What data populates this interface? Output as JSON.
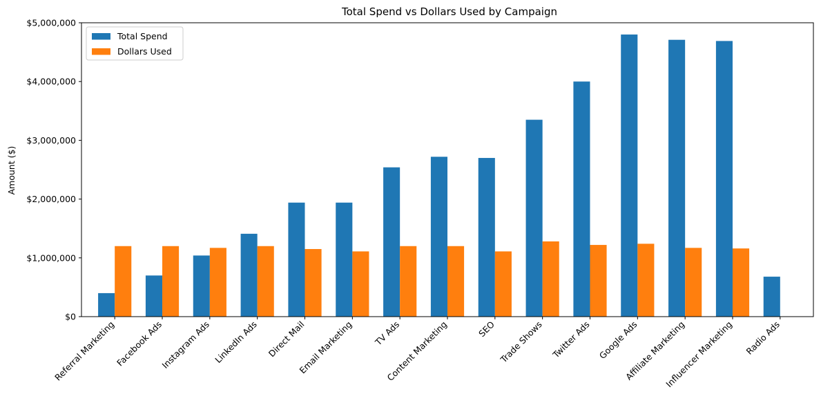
{
  "chart_data": {
    "type": "bar",
    "title": "Total Spend vs Dollars Used by Campaign",
    "xlabel": "",
    "ylabel": "Amount ($)",
    "ylim": [
      0,
      5000000
    ],
    "yticks": [
      0,
      1000000,
      2000000,
      3000000,
      4000000,
      5000000
    ],
    "ytick_labels": [
      "$0",
      "$1,000,000",
      "$2,000,000",
      "$3,000,000",
      "$4,000,000",
      "$5,000,000"
    ],
    "grid": false,
    "legend_position": "top-left",
    "categories": [
      "Referral Marketing",
      "Facebook Ads",
      "Instagram Ads",
      "LinkedIn Ads",
      "Direct Mail",
      "Email Marketing",
      "TV Ads",
      "Content Marketing",
      "SEO",
      "Trade Shows",
      "Twitter Ads",
      "Google Ads",
      "Affiliate Marketing",
      "Influencer Marketing",
      "Radio Ads"
    ],
    "series": [
      {
        "name": "Total Spend",
        "color": "#1f77b4",
        "values": [
          400000,
          700000,
          1040000,
          1410000,
          1940000,
          1940000,
          2540000,
          2720000,
          2700000,
          3350000,
          4000000,
          4800000,
          4710000,
          4690000,
          680000
        ]
      },
      {
        "name": "Dollars Used",
        "color": "#ff7f0e",
        "values": [
          1200000,
          1200000,
          1170000,
          1200000,
          1150000,
          1110000,
          1200000,
          1200000,
          1110000,
          1280000,
          1220000,
          1240000,
          1170000,
          1160000,
          0
        ]
      }
    ]
  }
}
